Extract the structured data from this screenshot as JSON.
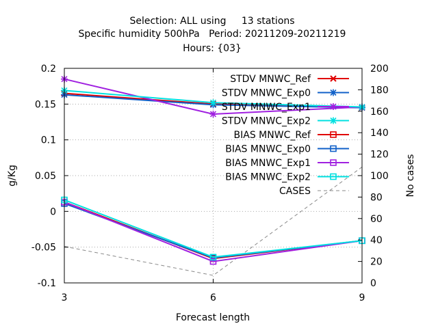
{
  "chart_data": {
    "type": "line",
    "title_lines": [
      "Selection: ALL using     13 stations",
      "Specific humidity 500hPa   Period: 20211209-20211219",
      "Hours: {03}"
    ],
    "xlabel": "Forecast length",
    "ylabel": "g/Kg",
    "y2label": "No cases",
    "x": [
      3,
      6,
      9
    ],
    "xticks": [
      "3",
      "6",
      "9"
    ],
    "xlim": [
      3,
      9
    ],
    "ylim": [
      -0.1,
      0.2
    ],
    "yticks": [
      "-0.1",
      "-0.05",
      "0",
      "0.05",
      "0.1",
      "0.15",
      "0.2"
    ],
    "y2lim": [
      0,
      200
    ],
    "y2ticks": [
      "0",
      "20",
      "40",
      "60",
      "80",
      "100",
      "120",
      "140",
      "160",
      "180",
      "200"
    ],
    "grid": true,
    "legend_position": "top-right",
    "series": [
      {
        "name": "STDV MNWC_Ref",
        "color": "#e00000",
        "marker": "x",
        "values": [
          0.165,
          0.15,
          0.145
        ]
      },
      {
        "name": "STDV MNWC_Exp0",
        "color": "#1060c8",
        "marker": "*",
        "values": [
          0.163,
          0.149,
          0.145
        ]
      },
      {
        "name": "STDV MNWC_Exp1",
        "color": "#a020e0",
        "marker": "*",
        "values": [
          0.185,
          0.136,
          0.146
        ]
      },
      {
        "name": "STDV MNWC_Exp2",
        "color": "#00e0e0",
        "marker": "*",
        "values": [
          0.169,
          0.152,
          0.146
        ]
      },
      {
        "name": "BIAS MNWC_Ref",
        "color": "#e00000",
        "marker": "square",
        "values": [
          0.013,
          -0.066,
          -0.041
        ]
      },
      {
        "name": "BIAS MNWC_Exp0",
        "color": "#1060c8",
        "marker": "square",
        "values": [
          0.011,
          -0.065,
          -0.041
        ]
      },
      {
        "name": "BIAS MNWC_Exp1",
        "color": "#a020e0",
        "marker": "square",
        "values": [
          0.013,
          -0.07,
          -0.041
        ]
      },
      {
        "name": "BIAS MNWC_Exp2",
        "color": "#00e0e0",
        "marker": "square",
        "values": [
          0.016,
          -0.064,
          -0.041
        ]
      },
      {
        "name": "CASES",
        "color": "#888888",
        "marker": "none",
        "dashed": true,
        "axis": "y2",
        "values": [
          34,
          7,
          108
        ]
      }
    ]
  }
}
